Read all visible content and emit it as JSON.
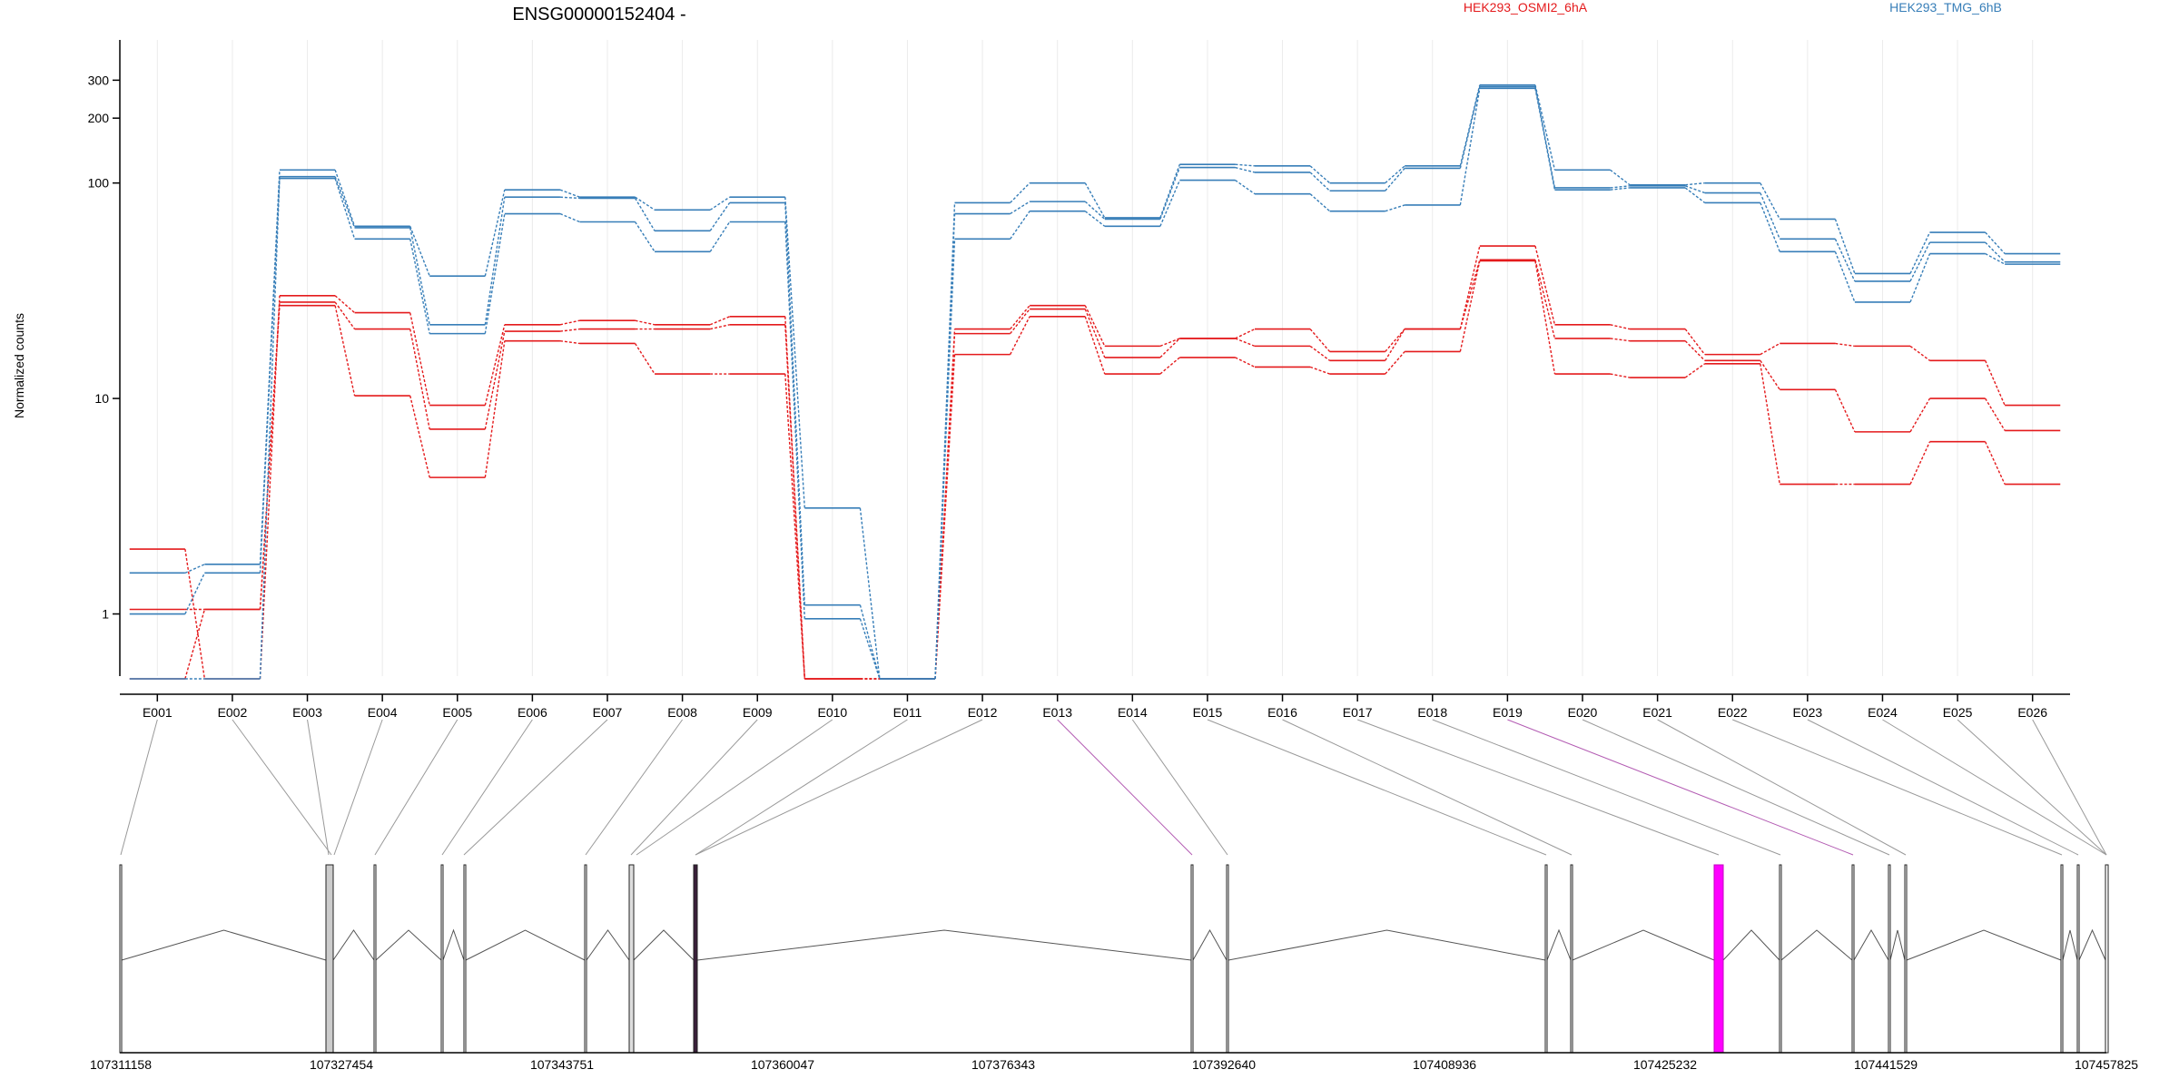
{
  "chart_data": {
    "type": "line",
    "title": "ENSG00000152404 -",
    "ylabel": "Normalized counts",
    "yscale": "log",
    "ylim": [
      0.5,
      380
    ],
    "yticks": [
      1,
      10,
      100,
      200,
      300
    ],
    "categories": [
      "E001",
      "E002",
      "E003",
      "E004",
      "E005",
      "E006",
      "E007",
      "E008",
      "E009",
      "E010",
      "E011",
      "E012",
      "E013",
      "E014",
      "E015",
      "E016",
      "E017",
      "E018",
      "E019",
      "E020",
      "E021",
      "E022",
      "E023",
      "E024",
      "E025",
      "E026"
    ],
    "legend": [
      {
        "name": "HEK293_OSMI2_6hA",
        "color": "#e41a1c"
      },
      {
        "name": "HEK293_TMG_6hB",
        "color": "#377eb8"
      }
    ],
    "series": [
      {
        "group": 0,
        "color": "#e41a1c",
        "values": [
          2.0,
          0.5,
          30,
          25,
          9.3,
          22,
          23,
          22,
          24,
          0.5,
          0.5,
          21,
          27,
          17.5,
          19,
          21,
          16.5,
          21,
          51,
          22,
          21,
          16,
          18,
          17.5,
          15,
          9.3
        ]
      },
      {
        "group": 0,
        "color": "#e41a1c",
        "values": [
          1.05,
          1.05,
          28,
          21,
          7.2,
          20.5,
          21,
          21,
          22,
          0.5,
          0.5,
          20,
          26,
          15.5,
          19,
          17.5,
          15,
          21,
          44,
          19,
          18.5,
          15,
          11,
          7,
          10,
          7.1
        ]
      },
      {
        "group": 0,
        "color": "#e41a1c",
        "values": [
          0.5,
          1.05,
          27,
          10.3,
          4.3,
          18.5,
          18,
          13,
          13,
          0.5,
          0.5,
          16,
          24,
          13,
          15.5,
          14,
          13,
          16.5,
          43.5,
          13,
          12.5,
          14.5,
          4,
          4,
          6.3,
          4
        ]
      },
      {
        "group": 1,
        "color": "#377eb8",
        "values": [
          1.55,
          1.7,
          115,
          63,
          37,
          93,
          86,
          75,
          86,
          3.1,
          0.5,
          81,
          100,
          69,
          122,
          120,
          100,
          120,
          285,
          115,
          98,
          100,
          68,
          38,
          59,
          47
        ]
      },
      {
        "group": 1,
        "color": "#377eb8",
        "values": [
          1.0,
          1.55,
          107,
          62,
          22,
          86,
          85,
          60,
          81,
          1.1,
          0.5,
          72,
          82,
          68,
          118,
          112,
          92,
          117,
          280,
          95,
          97,
          90,
          55,
          35,
          53,
          43
        ]
      },
      {
        "group": 1,
        "color": "#377eb8",
        "values": [
          0.5,
          0.5,
          105,
          55,
          20,
          72,
          66,
          48,
          66,
          0.95,
          0.5,
          55,
          74,
          63,
          103,
          89,
          74,
          79,
          275,
          93,
          95,
          81,
          48,
          28,
          47,
          42
        ]
      }
    ],
    "gene_track": {
      "coordinate_ticks": [
        "107311158",
        "107327454",
        "107343751",
        "107360047",
        "107376343",
        "107392640",
        "107408936",
        "107425232",
        "107441529",
        "107457825"
      ],
      "highlight_color": "#ff00ff",
      "highlighted_exons": [
        "E013",
        "E019"
      ]
    }
  }
}
